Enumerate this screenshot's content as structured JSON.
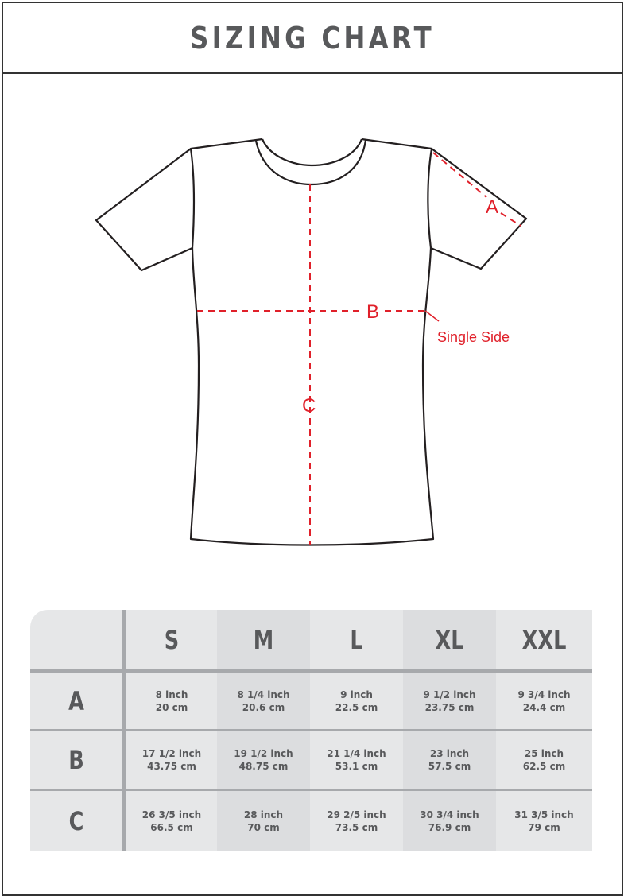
{
  "title": "SIZING CHART",
  "diagram": {
    "labels": {
      "a": "A",
      "b": "B",
      "c": "C",
      "single_side": "Single Side"
    },
    "measure_color": "#e0202a",
    "outline_color": "#231f20"
  },
  "table": {
    "sizes": [
      "S",
      "M",
      "L",
      "XL",
      "XXL"
    ],
    "rows": [
      {
        "label": "A",
        "cells": [
          {
            "inch": "8 inch",
            "cm": "20 cm"
          },
          {
            "inch": "8 1/4 inch",
            "cm": "20.6 cm"
          },
          {
            "inch": "9 inch",
            "cm": "22.5 cm"
          },
          {
            "inch": "9 1/2 inch",
            "cm": "23.75 cm"
          },
          {
            "inch": "9 3/4 inch",
            "cm": "24.4 cm"
          }
        ]
      },
      {
        "label": "B",
        "cells": [
          {
            "inch": "17 1/2 inch",
            "cm": "43.75 cm"
          },
          {
            "inch": "19 1/2 inch",
            "cm": "48.75 cm"
          },
          {
            "inch": "21 1/4 inch",
            "cm": "53.1 cm"
          },
          {
            "inch": "23 inch",
            "cm": "57.5 cm"
          },
          {
            "inch": "25 inch",
            "cm": "62.5 cm"
          }
        ]
      },
      {
        "label": "C",
        "cells": [
          {
            "inch": "26 3/5 inch",
            "cm": "66.5 cm"
          },
          {
            "inch": "28 inch",
            "cm": "70 cm"
          },
          {
            "inch": "29 2/5 inch",
            "cm": "73.5 cm"
          },
          {
            "inch": "30 3/4 inch",
            "cm": "76.9 cm"
          },
          {
            "inch": "31 3/5 inch",
            "cm": "79 cm"
          }
        ]
      }
    ]
  }
}
